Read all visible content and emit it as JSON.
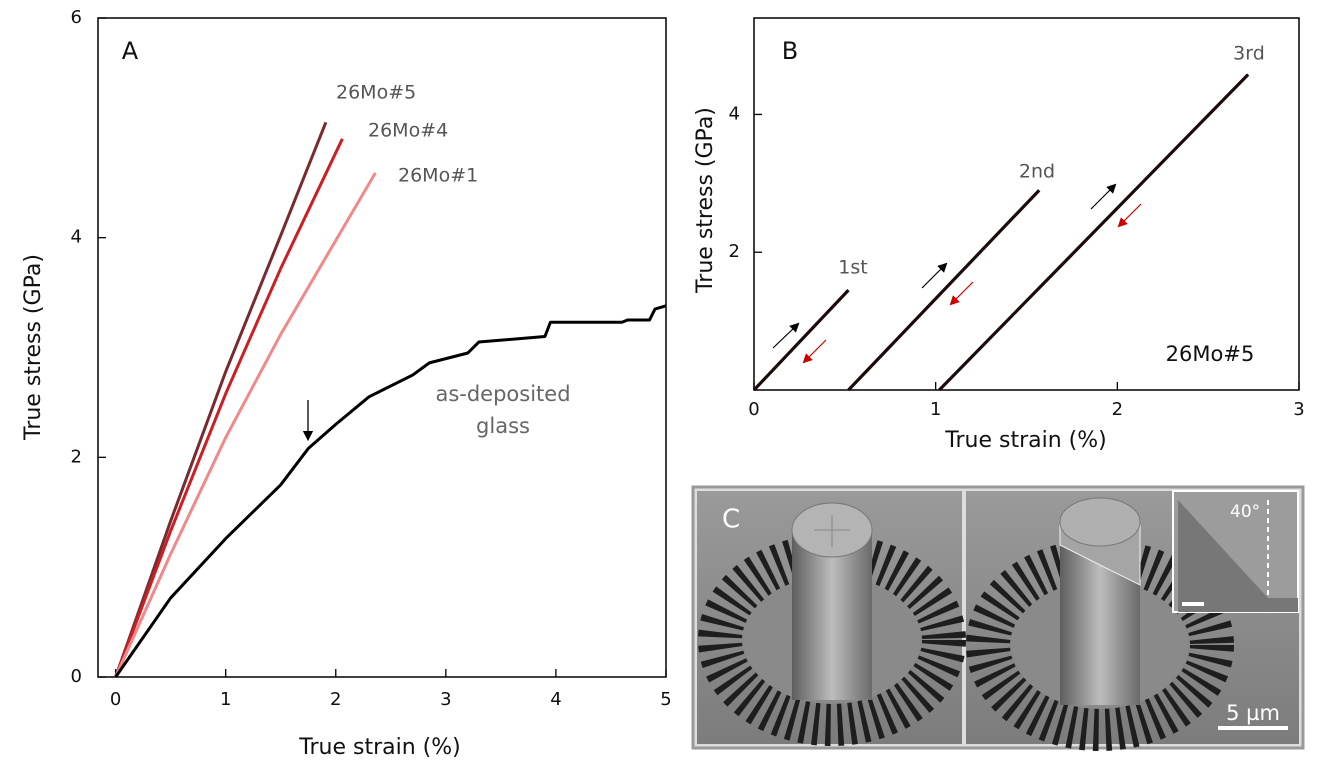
{
  "chart_data": [
    {
      "type": "line",
      "panel": "A",
      "xlabel": "True strain (%)",
      "ylabel": "True stress (GPa)",
      "xlim": [
        -0.16,
        5
      ],
      "ylim": [
        0,
        6
      ],
      "xticks": [
        0,
        1,
        2,
        3,
        4,
        5
      ],
      "yticks": [
        0,
        2,
        4,
        6
      ],
      "series": [
        {
          "name": "26Mo#5",
          "color": "#7a2a2e",
          "x": [
            0,
            0.5,
            1.0,
            1.5,
            1.91
          ],
          "values": [
            0,
            1.42,
            2.78,
            4.02,
            5.05
          ]
        },
        {
          "name": "26Mo#4",
          "color": "#cc1f24",
          "x": [
            0,
            0.5,
            1.0,
            1.5,
            2.06
          ],
          "values": [
            0,
            1.33,
            2.58,
            3.72,
            4.9
          ]
        },
        {
          "name": "26Mo#1",
          "color": "#f08a8a",
          "x": [
            0,
            0.5,
            1.0,
            1.5,
            2.36
          ],
          "values": [
            0,
            1.12,
            2.18,
            3.12,
            4.59
          ]
        },
        {
          "name": "as-deposited glass",
          "color": "#000000",
          "x": [
            0,
            0.5,
            1.0,
            1.5,
            1.75,
            2.0,
            2.3,
            2.7,
            2.85,
            3.2,
            3.3,
            3.9,
            3.95,
            4.6,
            4.65,
            4.85,
            4.9,
            5.0
          ],
          "values": [
            0,
            0.72,
            1.26,
            1.75,
            2.08,
            2.3,
            2.55,
            2.75,
            2.86,
            2.95,
            3.05,
            3.1,
            3.23,
            3.23,
            3.25,
            3.25,
            3.35,
            3.38
          ]
        }
      ]
    },
    {
      "type": "line",
      "panel": "B",
      "sample": "26Mo#5",
      "xlabel": "True strain (%)",
      "ylabel": "True stress (GPa)",
      "xlim": [
        0,
        3
      ],
      "ylim": [
        0,
        5.4
      ],
      "xticks": [
        0,
        1,
        2,
        3
      ],
      "yticks": [
        2,
        4
      ],
      "series": [
        {
          "name": "1st",
          "color": "#1a0a0a",
          "x": [
            0,
            0.52
          ],
          "values": [
            0,
            1.45
          ]
        },
        {
          "name": "2nd",
          "color": "#1a0a0a",
          "x": [
            0.52,
            1.57
          ],
          "values": [
            0,
            2.9
          ]
        },
        {
          "name": "3rd",
          "color": "#1a0a0a",
          "x": [
            1.02,
            2.72
          ],
          "values": [
            0,
            4.58
          ]
        }
      ]
    }
  ],
  "image_panel": {
    "label": "C",
    "inset_angle": "40°",
    "scale_bar": "5 µm"
  }
}
